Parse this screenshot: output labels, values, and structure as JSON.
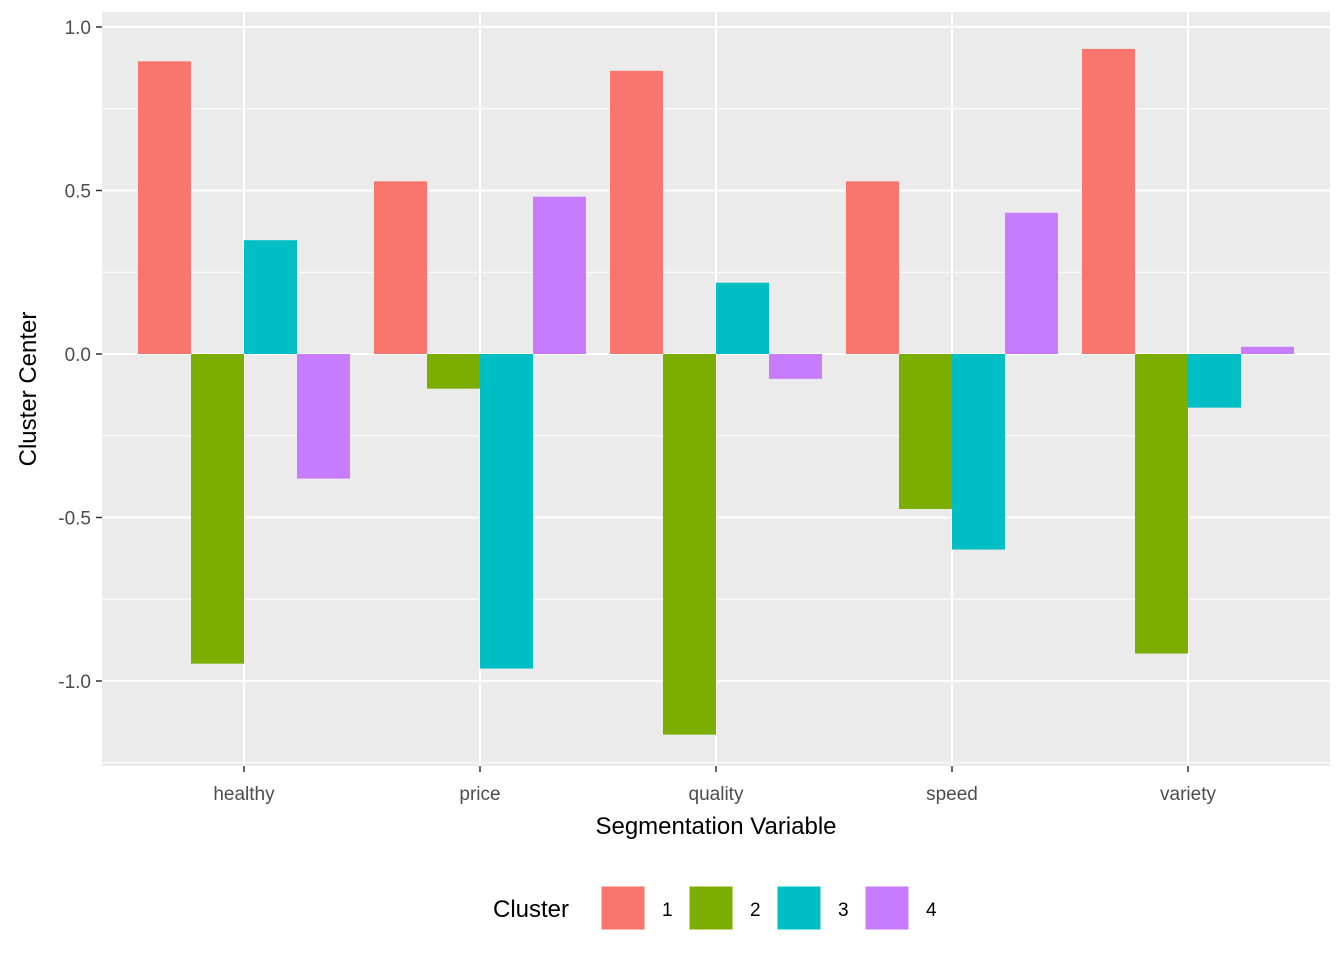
{
  "chart_data": {
    "type": "bar",
    "title": "",
    "xlabel": "Segmentation Variable",
    "ylabel": "Cluster Center",
    "categories": [
      "healthy",
      "price",
      "quality",
      "speed",
      "variety"
    ],
    "y_ticks": [
      1.0,
      0.5,
      0.0,
      -0.5,
      -1.0
    ],
    "y_tick_labels": [
      "1.0",
      "0.5",
      "0.0",
      "-0.5",
      "-1.0"
    ],
    "ylim": [
      -1.25,
      1.05
    ],
    "grid": true,
    "legend": {
      "title": "Cluster",
      "position": "bottom"
    },
    "series": [
      {
        "name": "1",
        "color": "#F8766D",
        "values": [
          0.895,
          0.528,
          0.866,
          0.528,
          0.933
        ]
      },
      {
        "name": "2",
        "color": "#7CAE00",
        "values": [
          -0.947,
          -0.106,
          -1.164,
          -0.474,
          -0.916
        ]
      },
      {
        "name": "3",
        "color": "#00BFC4",
        "values": [
          0.348,
          -0.962,
          0.218,
          -0.598,
          -0.164
        ]
      },
      {
        "name": "4",
        "color": "#C77CFF",
        "values": [
          -0.381,
          0.481,
          -0.076,
          0.432,
          0.022
        ]
      }
    ]
  }
}
